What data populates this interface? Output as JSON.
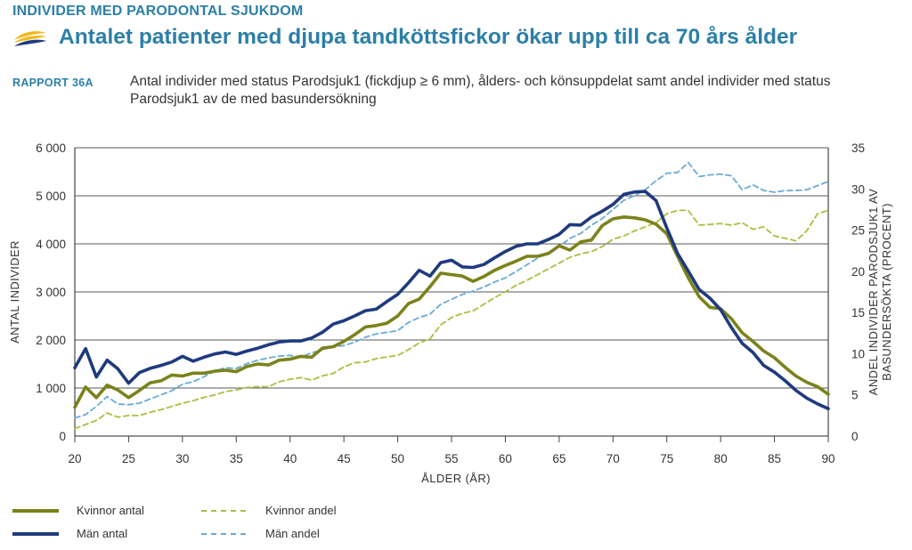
{
  "header": {
    "supertitle": "INDIVIDER MED PARODONTAL SJUKDOM",
    "title": "Antalet patienter med djupa tandköttsfickor ökar upp till ca 70 års ålder",
    "report_label": "RAPPORT 36A",
    "description": "Antal individer med status Parodsjuk1 (fickdjup ≥ 6 mm), ålders- och könsuppdelat samt andel individer med status Parodsjuk1 av de med basundersökning"
  },
  "colors": {
    "title": "#2b7fa8",
    "kvinnor_antal": "#7b821a",
    "man_antal": "#1f3a7f",
    "kvinnor_andel": "#a9bf3e",
    "man_andel": "#6aaad6",
    "logo_yellow": "#f2b81c",
    "logo_blue": "#1f3a7f"
  },
  "chart_data": {
    "type": "line",
    "xlabel": "ÅLDER (ÅR)",
    "ylabel": "ANTAL INDIVIDER",
    "y2label": "ANDEL INDIVIDER PARODSJUK1 AV BASUNDERSÖKTA (PROCENT)",
    "ylabel_right_line1": "ANDEL INDIVIDER PARODSJUK1 AV",
    "ylabel_right_line2": "BASUNDERSÖKTA (PROCENT)",
    "xlim": [
      20,
      90
    ],
    "ylim": [
      0,
      6000
    ],
    "y2lim": [
      0,
      35
    ],
    "x_ticks": [
      "20",
      "25",
      "30",
      "35",
      "40",
      "45",
      "50",
      "55",
      "60",
      "65",
      "70",
      "75",
      "80",
      "85",
      "90"
    ],
    "y_ticks": [
      "0",
      "1 000",
      "2 000",
      "3 000",
      "4 000",
      "5 000",
      "6 000"
    ],
    "y2_ticks": [
      "0",
      "5",
      "10",
      "15",
      "20",
      "25",
      "30",
      "35"
    ],
    "grid": "horizontal",
    "legend_position": "bottom-left",
    "x": [
      20,
      21,
      22,
      23,
      24,
      25,
      26,
      27,
      28,
      29,
      30,
      31,
      32,
      33,
      34,
      35,
      36,
      37,
      38,
      39,
      40,
      41,
      42,
      43,
      44,
      45,
      46,
      47,
      48,
      49,
      50,
      51,
      52,
      53,
      54,
      55,
      56,
      57,
      58,
      59,
      60,
      61,
      62,
      63,
      64,
      65,
      66,
      67,
      68,
      69,
      70,
      71,
      72,
      73,
      74,
      75,
      76,
      77,
      78,
      79,
      80,
      81,
      82,
      83,
      84,
      85,
      86,
      87,
      88,
      89,
      90
    ],
    "series": [
      {
        "name": "Kvinnor antal",
        "axis": "left",
        "style": "solid",
        "values": [
          600,
          1020,
          800,
          1060,
          960,
          800,
          950,
          1110,
          1150,
          1270,
          1250,
          1310,
          1310,
          1350,
          1370,
          1340,
          1450,
          1500,
          1480,
          1580,
          1600,
          1660,
          1640,
          1830,
          1860,
          1970,
          2110,
          2270,
          2300,
          2350,
          2500,
          2760,
          2850,
          3110,
          3390,
          3360,
          3330,
          3220,
          3320,
          3450,
          3550,
          3640,
          3740,
          3740,
          3800,
          3960,
          3870,
          4040,
          4080,
          4380,
          4520,
          4560,
          4540,
          4500,
          4410,
          4210,
          3740,
          3290,
          2900,
          2680,
          2650,
          2440,
          2150,
          1970,
          1770,
          1630,
          1430,
          1250,
          1120,
          1030,
          870
        ]
      },
      {
        "name": "Män antal",
        "axis": "left",
        "style": "solid",
        "values": [
          1420,
          1820,
          1230,
          1580,
          1400,
          1100,
          1320,
          1410,
          1470,
          1540,
          1660,
          1560,
          1640,
          1710,
          1750,
          1700,
          1770,
          1830,
          1900,
          1960,
          1980,
          1980,
          2040,
          2160,
          2330,
          2400,
          2500,
          2610,
          2640,
          2800,
          2950,
          3190,
          3450,
          3330,
          3610,
          3660,
          3520,
          3510,
          3570,
          3710,
          3840,
          3950,
          4000,
          4000,
          4090,
          4200,
          4400,
          4390,
          4560,
          4680,
          4820,
          5030,
          5080,
          5090,
          4900,
          4330,
          3800,
          3430,
          3050,
          2870,
          2630,
          2260,
          1930,
          1740,
          1470,
          1330,
          1150,
          950,
          790,
          670,
          570
        ]
      },
      {
        "name": "Kvinnor andel",
        "axis": "right",
        "style": "dashed",
        "values": [
          0.9,
          1.4,
          1.9,
          2.8,
          2.3,
          2.5,
          2.5,
          2.9,
          3.2,
          3.6,
          4.0,
          4.3,
          4.7,
          5.0,
          5.4,
          5.6,
          5.9,
          6.0,
          6.0,
          6.6,
          6.9,
          7.1,
          6.8,
          7.3,
          7.6,
          8.4,
          8.9,
          9.0,
          9.4,
          9.6,
          9.8,
          10.5,
          11.3,
          11.8,
          13.5,
          14.4,
          14.9,
          15.2,
          16.0,
          16.8,
          17.5,
          18.3,
          18.9,
          19.6,
          20.3,
          21.0,
          21.7,
          22.1,
          22.4,
          23.0,
          23.9,
          24.3,
          24.9,
          25.4,
          25.9,
          27.0,
          27.4,
          27.4,
          25.6,
          25.7,
          25.8,
          25.6,
          25.9,
          25.1,
          25.4,
          24.3,
          24.0,
          23.7,
          24.9,
          27.0,
          27.4
        ]
      },
      {
        "name": "Män andel",
        "axis": "right",
        "style": "dashed",
        "values": [
          2.2,
          2.6,
          3.6,
          4.8,
          3.9,
          3.8,
          4.0,
          4.5,
          5.0,
          5.5,
          6.3,
          6.6,
          7.2,
          7.9,
          8.3,
          8.2,
          8.8,
          9.2,
          9.5,
          9.7,
          9.8,
          9.6,
          10.1,
          10.5,
          10.8,
          11.0,
          11.4,
          12.0,
          12.4,
          12.6,
          12.8,
          13.8,
          14.4,
          14.8,
          16.0,
          16.6,
          17.2,
          17.6,
          18.1,
          18.7,
          19.2,
          20.0,
          20.8,
          21.6,
          22.3,
          23.0,
          24.0,
          24.6,
          25.6,
          26.4,
          27.5,
          28.6,
          29.2,
          29.9,
          31.0,
          31.9,
          32.0,
          33.2,
          31.5,
          31.7,
          31.8,
          31.6,
          29.9,
          30.5,
          29.8,
          29.6,
          29.8,
          29.8,
          29.9,
          30.4,
          30.9
        ]
      }
    ]
  }
}
